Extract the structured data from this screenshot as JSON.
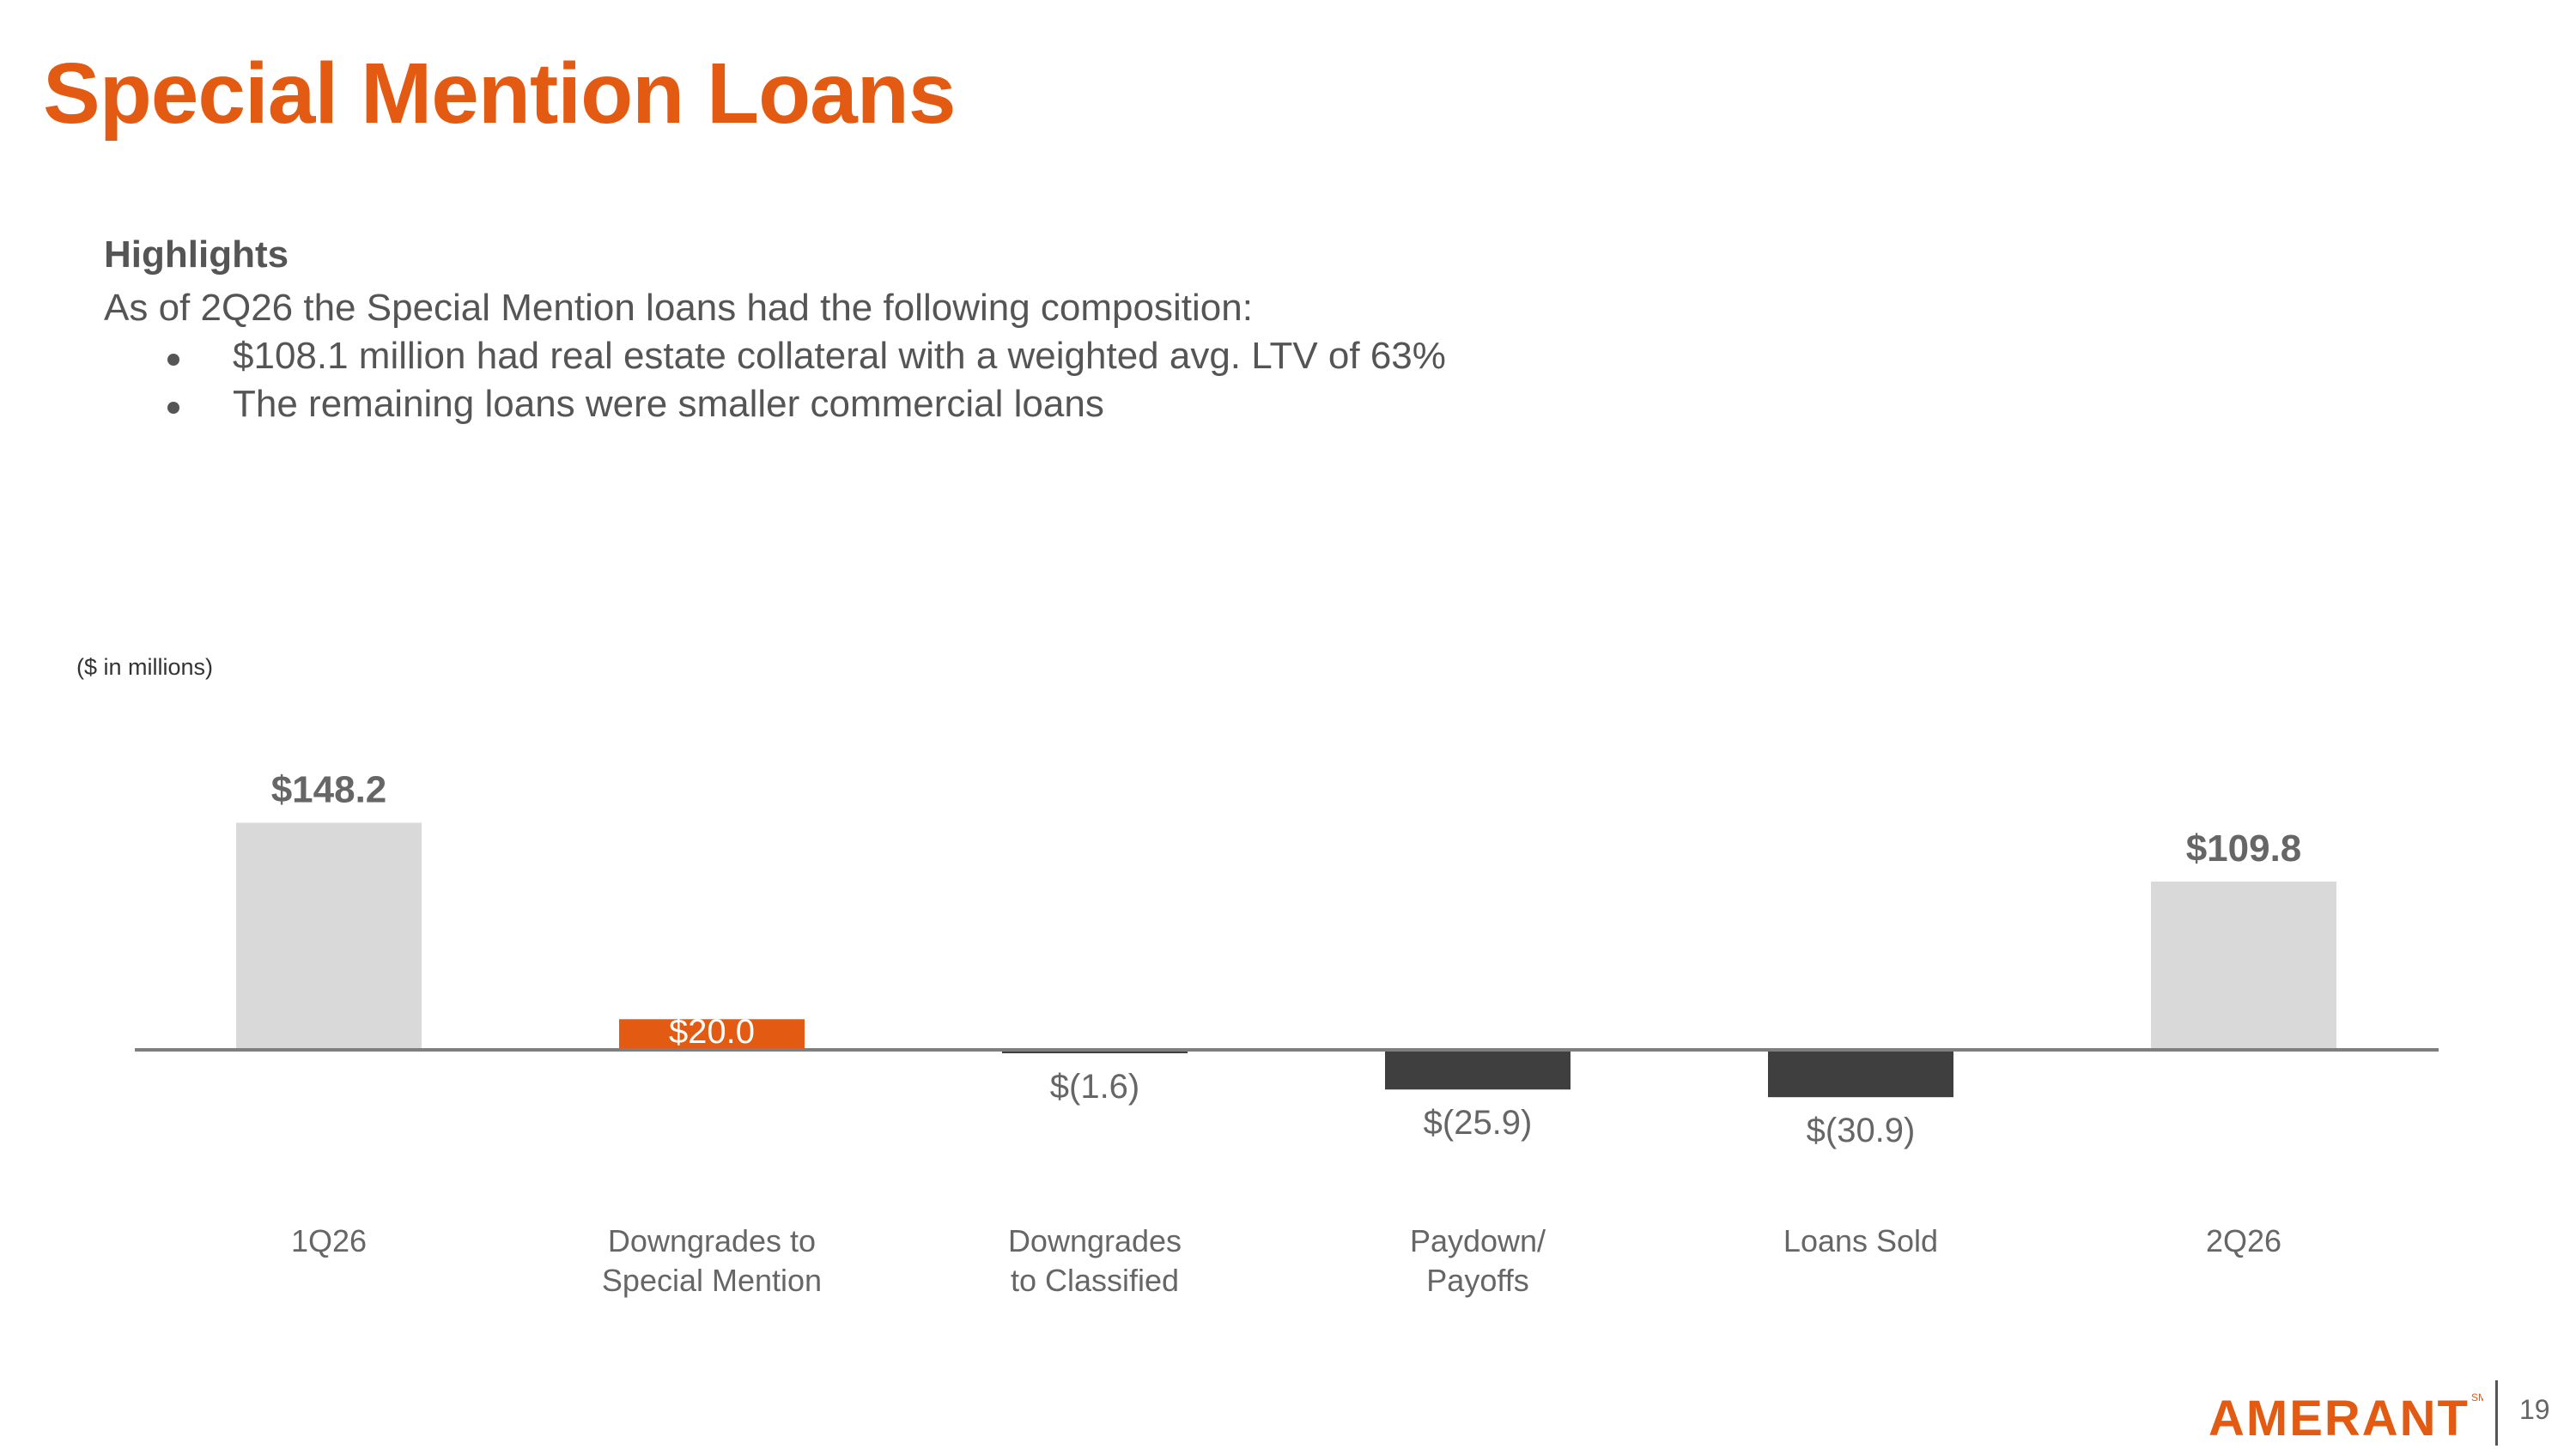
{
  "title": "Special Mention Loans",
  "highlights": {
    "heading": "Highlights",
    "intro": "As of 2Q26 the Special Mention loans had the following composition:",
    "bullets": [
      "$108.1 million had real estate collateral with a weighted avg. LTV of 63%",
      "The remaining loans were smaller commercial loans"
    ]
  },
  "units_note": "($ in millions)",
  "chart_data": {
    "type": "bar",
    "subtype": "waterfall",
    "categories": [
      "1Q26",
      "Downgrades to Special Mention",
      "Downgrades to Classified",
      "Paydown/ Payoffs",
      "Loans Sold",
      "2Q26"
    ],
    "values": [
      148.2,
      20.0,
      -1.6,
      -25.9,
      -30.9,
      109.8
    ],
    "data_labels": [
      "$148.2",
      "$20.0",
      "$(1.6)",
      "$(25.9)",
      "$(30.9)",
      "$109.8"
    ],
    "title": "",
    "xlabel": "",
    "ylabel": "",
    "grid": false,
    "colors": {
      "total": "#d9d9d9",
      "increase": "#e35a12",
      "decrease": "#3f3f3f",
      "baseline": "#7f7f7f",
      "label": "#666666",
      "label_on_bar": "#ffffff"
    }
  },
  "footer": {
    "logo_text": "AMERANT",
    "logo_mark": "SM",
    "page_number": "19"
  }
}
